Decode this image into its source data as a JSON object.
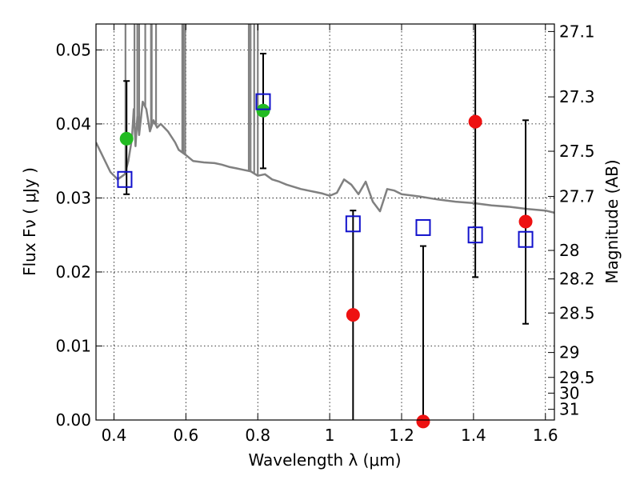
{
  "chart_data": {
    "type": "scatter",
    "xlabel": "Wavelength  λ (μm)",
    "ylabel": "Flux  Fν ( μJy )",
    "y2label": "Magnitude (AB)",
    "xlim": [
      0.35,
      1.625
    ],
    "ylim": [
      0.0,
      0.0535
    ],
    "x_ticks": [
      0.4,
      0.6,
      0.8,
      1.0,
      1.2,
      1.4,
      1.6
    ],
    "x_tick_labels": [
      "0.4",
      "0.6",
      "0.8",
      "1",
      "1.2",
      "1.4",
      "1.6"
    ],
    "y_ticks": [
      0.0,
      0.01,
      0.02,
      0.03,
      0.04,
      0.05
    ],
    "y_tick_labels": [
      "0.00",
      "0.01",
      "0.02",
      "0.03",
      "0.04",
      "0.05"
    ],
    "y2_ticks": [
      27.1,
      27.3,
      27.5,
      27.7,
      28,
      28.2,
      28.5,
      29,
      29.5,
      30,
      31
    ],
    "y2_tick_labels": [
      "27.1",
      "27.3",
      "27.5",
      "27.7",
      "28",
      "28.2",
      "28.5",
      "29",
      "29.5",
      "30",
      "31"
    ],
    "grid": true,
    "colors": {
      "template": "#808080",
      "detection": "#22bb22",
      "low_sn": "#ee1111",
      "model": "#1111cc",
      "errorbar": "#000000"
    },
    "series": [
      {
        "kind": "template_line",
        "x": [
          0.35,
          0.37,
          0.39,
          0.41,
          0.43,
          0.44,
          0.45,
          0.455,
          0.46,
          0.465,
          0.47,
          0.48,
          0.49,
          0.5,
          0.51,
          0.52,
          0.53,
          0.55,
          0.57,
          0.58,
          0.6,
          0.62,
          0.65,
          0.68,
          0.7,
          0.72,
          0.74,
          0.76,
          0.78,
          0.8,
          0.82,
          0.84,
          0.86,
          0.88,
          0.9,
          0.92,
          0.94,
          0.96,
          0.98,
          1.0,
          1.02,
          1.04,
          1.06,
          1.08,
          1.1,
          1.12,
          1.14,
          1.16,
          1.18,
          1.2,
          1.25,
          1.3,
          1.35,
          1.4,
          1.45,
          1.5,
          1.55,
          1.6,
          1.625
        ],
        "y": [
          0.0375,
          0.0355,
          0.0335,
          0.0325,
          0.0332,
          0.035,
          0.038,
          0.042,
          0.037,
          0.041,
          0.0385,
          0.043,
          0.042,
          0.039,
          0.0405,
          0.0395,
          0.04,
          0.039,
          0.0375,
          0.0365,
          0.0358,
          0.035,
          0.0348,
          0.0347,
          0.0345,
          0.0342,
          0.034,
          0.0338,
          0.0336,
          0.033,
          0.0332,
          0.0325,
          0.0322,
          0.0318,
          0.0315,
          0.0312,
          0.031,
          0.0308,
          0.0306,
          0.0303,
          0.0307,
          0.0325,
          0.0318,
          0.0305,
          0.0322,
          0.0295,
          0.0282,
          0.0312,
          0.031,
          0.0305,
          0.0302,
          0.0298,
          0.0295,
          0.0293,
          0.029,
          0.0288,
          0.0285,
          0.0283,
          0.028
        ],
        "emission_spikes": [
          0.432,
          0.457,
          0.465,
          0.47,
          0.487,
          0.503,
          0.505,
          0.517,
          0.59,
          0.593,
          0.598,
          0.775,
          0.78,
          0.79,
          0.8
        ]
      },
      {
        "kind": "detection",
        "marker": "circle",
        "x": [
          0.435,
          0.815
        ],
        "y": [
          0.038,
          0.0418
        ]
      },
      {
        "kind": "low_sn",
        "marker": "circle",
        "x": [
          1.065,
          1.26,
          1.405,
          1.545
        ],
        "y": [
          0.0142,
          -0.0002,
          0.0403,
          0.0268
        ]
      },
      {
        "kind": "model",
        "marker": "open_square",
        "x": [
          0.43,
          0.815,
          1.065,
          1.26,
          1.405,
          1.545
        ],
        "y": [
          0.0325,
          0.043,
          0.0265,
          0.026,
          0.025,
          0.0244
        ]
      },
      {
        "kind": "errorbars",
        "x": [
          0.435,
          0.815,
          1.065,
          1.26,
          1.405,
          1.545
        ],
        "low": [
          0.0305,
          0.034,
          0.0,
          0.0,
          0.0193,
          0.013
        ],
        "high": [
          0.0458,
          0.0495,
          0.0283,
          0.0235,
          0.0545,
          0.0405
        ]
      }
    ]
  }
}
